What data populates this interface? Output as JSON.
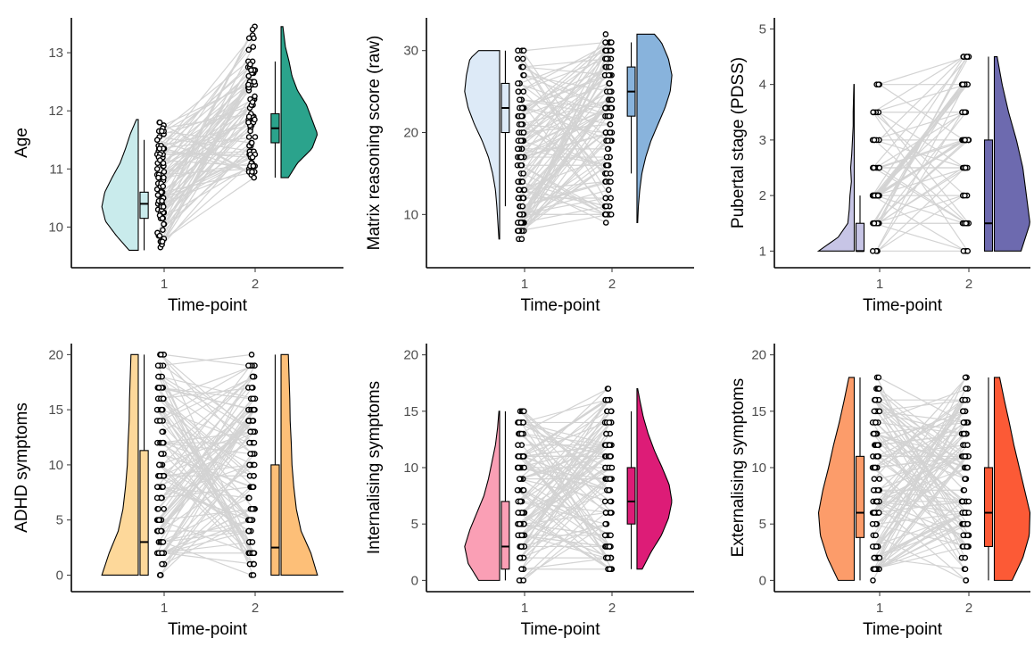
{
  "figure": {
    "xticks": [
      "1",
      "2"
    ],
    "connector_color": "#d3d3d3",
    "outline_color": "#000000"
  },
  "chart_data": [
    {
      "type": "raincloud",
      "xlabel": "Time-point",
      "ylabel": "Age",
      "ylim": [
        9.3,
        13.6
      ],
      "yticks": [
        10,
        11,
        12,
        13
      ],
      "colors": [
        "#c9ebec",
        "#2ba38c"
      ],
      "grid": false,
      "legend": "none",
      "series": [
        {
          "name": "1",
          "box": {
            "min": 9.6,
            "q1": 10.15,
            "median": 10.4,
            "q3": 10.6,
            "max": 11.5
          },
          "density": {
            "min": 9.6,
            "max": 11.85,
            "y": [
              9.6,
              9.85,
              10.1,
              10.35,
              10.6,
              10.85,
              11.1,
              11.35,
              11.6,
              11.85
            ],
            "d": [
              0.25,
              0.6,
              0.9,
              1.0,
              0.92,
              0.72,
              0.5,
              0.35,
              0.22,
              0.05
            ]
          }
        },
        {
          "name": "2",
          "box": {
            "min": 10.85,
            "q1": 11.45,
            "median": 11.7,
            "q3": 11.95,
            "max": 12.85
          },
          "density": {
            "min": 10.85,
            "max": 13.45,
            "y": [
              10.85,
              11.1,
              11.35,
              11.6,
              11.85,
              12.1,
              12.35,
              12.6,
              12.85,
              13.1,
              13.45
            ],
            "d": [
              0.2,
              0.45,
              0.85,
              1.0,
              0.85,
              0.7,
              0.45,
              0.3,
              0.22,
              0.12,
              0.05
            ]
          }
        }
      ],
      "paired_points": {
        "count": 80,
        "t1": [
          9.6,
          11.85
        ],
        "t2": [
          10.85,
          13.45
        ],
        "step": 0.05,
        "seed": 11
      }
    },
    {
      "type": "raincloud",
      "xlabel": "Time-point",
      "ylabel": "Matrix reasoning score (raw)",
      "ylim": [
        3.5,
        34
      ],
      "yticks": [
        10,
        20,
        30
      ],
      "colors": [
        "#ddeaf7",
        "#88b3dc"
      ],
      "grid": false,
      "legend": "none",
      "series": [
        {
          "name": "1",
          "box": {
            "min": 11,
            "q1": 20,
            "median": 23,
            "q3": 26,
            "max": 30
          },
          "density": {
            "min": 7,
            "max": 30,
            "y": [
              7,
              9,
              11,
              13,
              15,
              17,
              19,
              21,
              23,
              25,
              27,
              29,
              30
            ],
            "d": [
              0.02,
              0.05,
              0.08,
              0.12,
              0.2,
              0.32,
              0.5,
              0.72,
              0.9,
              1.0,
              0.95,
              0.85,
              0.6
            ]
          }
        },
        {
          "name": "2",
          "box": {
            "min": 15,
            "q1": 22,
            "median": 25,
            "q3": 28,
            "max": 31
          },
          "density": {
            "min": 9,
            "max": 32,
            "y": [
              9,
              11,
              13,
              15,
              17,
              19,
              21,
              23,
              25,
              27,
              29,
              31,
              32
            ],
            "d": [
              0.02,
              0.04,
              0.08,
              0.14,
              0.25,
              0.4,
              0.6,
              0.8,
              0.95,
              1.0,
              0.9,
              0.7,
              0.5
            ]
          }
        }
      ],
      "paired_points": {
        "count": 110,
        "t1": [
          7,
          30
        ],
        "t2": [
          9,
          32
        ],
        "step": 1,
        "seed": 23
      }
    },
    {
      "type": "raincloud",
      "xlabel": "Time-point",
      "ylabel": "Pubertal stage (PDSS)",
      "ylim": [
        0.7,
        5.2
      ],
      "yticks": [
        1,
        2,
        3,
        4,
        5
      ],
      "colors": [
        "#c7c5e6",
        "#6d6aaf"
      ],
      "grid": false,
      "legend": "none",
      "series": [
        {
          "name": "1",
          "box": {
            "min": 1,
            "q1": 1,
            "median": 1,
            "q3": 1.5,
            "max": 2
          },
          "density": {
            "min": 1,
            "max": 4,
            "y": [
              1,
              1.25,
              1.5,
              1.75,
              2,
              2.25,
              2.5,
              2.75,
              3,
              3.25,
              3.5,
              3.75,
              4
            ],
            "d": [
              1.0,
              0.45,
              0.18,
              0.14,
              0.12,
              0.08,
              0.1,
              0.07,
              0.05,
              0.03,
              0.03,
              0.02,
              0.01
            ]
          }
        },
        {
          "name": "2",
          "box": {
            "min": 1,
            "q1": 1,
            "median": 1.5,
            "q3": 3,
            "max": 4.5
          },
          "density": {
            "min": 1,
            "max": 4.5,
            "y": [
              1,
              1.5,
              2,
              2.5,
              3,
              3.5,
              4,
              4.5
            ],
            "d": [
              0.75,
              1.0,
              0.9,
              0.8,
              0.62,
              0.4,
              0.22,
              0.08
            ]
          }
        }
      ],
      "paired_points": {
        "count": 60,
        "t1": [
          1,
          4
        ],
        "t2": [
          1,
          4.5
        ],
        "step": 0.5,
        "seed": 37
      }
    },
    {
      "type": "raincloud",
      "xlabel": "Time-point",
      "ylabel": "ADHD symptoms",
      "ylim": [
        -1.5,
        21
      ],
      "yticks": [
        0,
        5,
        10,
        15,
        20
      ],
      "colors": [
        "#fdd89a",
        "#fdbf78"
      ],
      "grid": false,
      "legend": "none",
      "series": [
        {
          "name": "1",
          "box": {
            "min": 0,
            "q1": 0,
            "median": 3,
            "q3": 11.3,
            "max": 20
          },
          "density": {
            "min": 0,
            "max": 20,
            "y": [
              0,
              2,
              4,
              6,
              8,
              10,
              12,
              14,
              16,
              18,
              20
            ],
            "d": [
              1.0,
              0.8,
              0.55,
              0.42,
              0.35,
              0.3,
              0.28,
              0.25,
              0.24,
              0.22,
              0.2
            ]
          }
        },
        {
          "name": "2",
          "box": {
            "min": 0,
            "q1": 0,
            "median": 2.5,
            "q3": 10,
            "max": 20
          },
          "density": {
            "min": 0,
            "max": 20,
            "y": [
              0,
              2,
              4,
              6,
              8,
              10,
              12,
              14,
              16,
              18,
              20
            ],
            "d": [
              1.0,
              0.82,
              0.55,
              0.42,
              0.35,
              0.3,
              0.28,
              0.25,
              0.24,
              0.22,
              0.2
            ]
          }
        }
      ],
      "paired_points": {
        "count": 110,
        "t1": [
          0,
          20
        ],
        "t2": [
          0,
          20
        ],
        "step": 1,
        "seed": 53
      }
    },
    {
      "type": "raincloud",
      "xlabel": "Time-point",
      "ylabel": "Internalising symptoms",
      "ylim": [
        -1,
        21
      ],
      "yticks": [
        0,
        5,
        10,
        15,
        20
      ],
      "colors": [
        "#fa9fb5",
        "#dd1c77"
      ],
      "grid": false,
      "legend": "none",
      "series": [
        {
          "name": "1",
          "box": {
            "min": 0,
            "q1": 1,
            "median": 3,
            "q3": 7,
            "max": 15
          },
          "density": {
            "min": 0,
            "max": 15,
            "y": [
              0,
              1.5,
              3,
              4.5,
              6,
              7.5,
              9,
              10.5,
              12,
              13.5,
              15
            ],
            "d": [
              0.6,
              0.9,
              1.0,
              0.85,
              0.65,
              0.45,
              0.32,
              0.22,
              0.12,
              0.06,
              0.02
            ]
          }
        },
        {
          "name": "2",
          "box": {
            "min": 1,
            "q1": 5,
            "median": 7,
            "q3": 10,
            "max": 15
          },
          "density": {
            "min": 1,
            "max": 17,
            "y": [
              1,
              2.5,
              4,
              5.5,
              7,
              8.5,
              10,
              11.5,
              13,
              14.5,
              16,
              17
            ],
            "d": [
              0.15,
              0.4,
              0.7,
              0.9,
              1.0,
              0.92,
              0.72,
              0.5,
              0.32,
              0.18,
              0.08,
              0.02
            ]
          }
        }
      ],
      "paired_points": {
        "count": 110,
        "t1": [
          0,
          15
        ],
        "t2": [
          1,
          17
        ],
        "step": 1,
        "seed": 71
      }
    },
    {
      "type": "raincloud",
      "xlabel": "Time-point",
      "ylabel": "Externalising symptoms",
      "ylim": [
        -1,
        21
      ],
      "yticks": [
        0,
        5,
        10,
        15,
        20
      ],
      "colors": [
        "#fc9c6a",
        "#fc5a36"
      ],
      "grid": false,
      "legend": "none",
      "series": [
        {
          "name": "1",
          "box": {
            "min": 0,
            "q1": 3.8,
            "median": 6,
            "q3": 11,
            "max": 18
          },
          "density": {
            "min": 0,
            "max": 18,
            "y": [
              0,
              2,
              4,
              6,
              8,
              10,
              12,
              14,
              16,
              18
            ],
            "d": [
              0.45,
              0.75,
              0.95,
              1.0,
              0.88,
              0.72,
              0.58,
              0.42,
              0.28,
              0.15
            ]
          }
        },
        {
          "name": "2",
          "box": {
            "min": 0,
            "q1": 3,
            "median": 6,
            "q3": 10,
            "max": 18
          },
          "density": {
            "min": 0,
            "max": 18,
            "y": [
              0,
              2,
              4,
              6,
              8,
              10,
              12,
              14,
              16,
              18
            ],
            "d": [
              0.5,
              0.8,
              0.98,
              1.0,
              0.85,
              0.7,
              0.55,
              0.42,
              0.28,
              0.15
            ]
          }
        }
      ],
      "paired_points": {
        "count": 110,
        "t1": [
          0,
          18
        ],
        "t2": [
          0,
          18
        ],
        "step": 1,
        "seed": 89
      }
    }
  ]
}
